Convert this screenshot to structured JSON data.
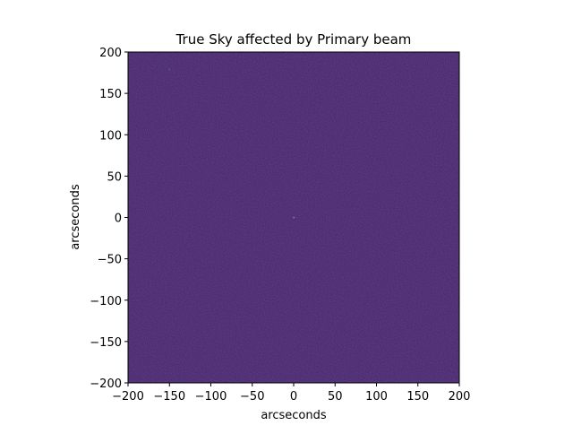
{
  "chart_data": {
    "type": "heatmap",
    "title": "True Sky affected by Primary beam",
    "xlabel": "arcseconds",
    "ylabel": "arcseconds",
    "xlim": [
      -200,
      200
    ],
    "ylim": [
      -200,
      200
    ],
    "xticks": [
      -200,
      -150,
      -100,
      -50,
      0,
      50,
      100,
      150,
      200
    ],
    "yticks": [
      -200,
      -150,
      -100,
      -50,
      0,
      50,
      100,
      150,
      200
    ],
    "xtick_labels": [
      "−200",
      "−150",
      "−100",
      "−50",
      "0",
      "50",
      "100",
      "150",
      "200"
    ],
    "ytick_labels": [
      "−200",
      "−150",
      "−100",
      "−50",
      "0",
      "50",
      "100",
      "150",
      "200"
    ],
    "colormap": "viridis",
    "background_color": "#46226f",
    "grid": false,
    "point_sources": [
      {
        "x": 0,
        "y": 0,
        "color": "#9b8fd0"
      },
      {
        "x": -150,
        "y": 179,
        "color": "#3a78a8"
      }
    ]
  }
}
